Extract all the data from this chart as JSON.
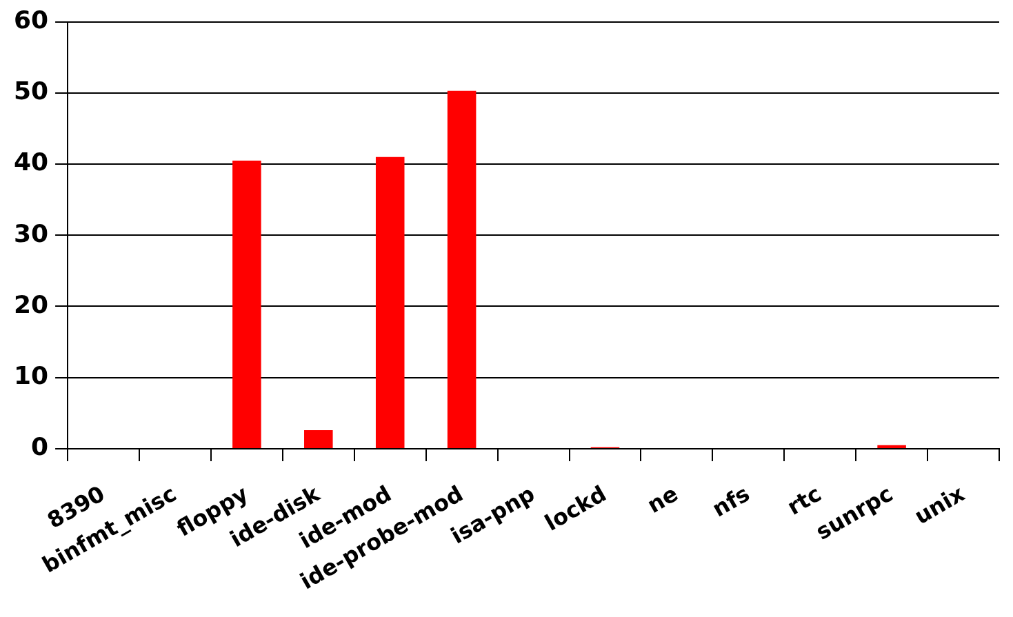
{
  "chart_data": {
    "type": "bar",
    "categories": [
      "8390",
      "binfmt_misc",
      "floppy",
      "ide-disk",
      "ide-mod",
      "ide-probe-mod",
      "isa-pnp",
      "lockd",
      "ne",
      "nfs",
      "rtc",
      "sunrpc",
      "unix"
    ],
    "values": [
      0,
      0,
      40.5,
      2.6,
      41.0,
      50.3,
      0,
      0.2,
      0,
      0,
      0,
      0.5,
      0
    ],
    "color": "#ff0000",
    "ylim": [
      0,
      60
    ],
    "yticks": [
      0,
      10,
      20,
      30,
      40,
      50,
      60
    ],
    "grid": "y",
    "legend": false
  }
}
